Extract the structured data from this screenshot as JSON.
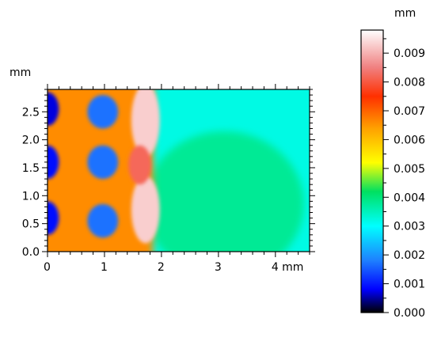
{
  "chart_data": {
    "type": "heatmap",
    "xaxis": {
      "unit_label": "mm",
      "ticks": [
        {
          "value": 0,
          "label": "0"
        },
        {
          "value": 1,
          "label": "1"
        },
        {
          "value": 2,
          "label": "2"
        },
        {
          "value": 3,
          "label": "3"
        },
        {
          "value": 4,
          "label": "4 mm"
        }
      ],
      "range": [
        0,
        4.6
      ]
    },
    "yaxis": {
      "unit_label": "mm",
      "ticks": [
        {
          "value": 0.0,
          "label": "0.0"
        },
        {
          "value": 0.5,
          "label": "0.5"
        },
        {
          "value": 1.0,
          "label": "1.0"
        },
        {
          "value": 1.5,
          "label": "1.5"
        },
        {
          "value": 2.0,
          "label": "2.0"
        },
        {
          "value": 2.5,
          "label": "2.5"
        }
      ],
      "range": [
        0,
        2.9
      ]
    },
    "colorbar": {
      "unit_label": "mm",
      "range": [
        0.0,
        0.0098
      ],
      "ticks": [
        {
          "value": 0.0,
          "label": "0.000"
        },
        {
          "value": 0.001,
          "label": "0.001"
        },
        {
          "value": 0.002,
          "label": "0.002"
        },
        {
          "value": 0.003,
          "label": "0.003"
        },
        {
          "value": 0.004,
          "label": "0.004"
        },
        {
          "value": 0.005,
          "label": "0.005"
        },
        {
          "value": 0.006,
          "label": "0.006"
        },
        {
          "value": 0.007,
          "label": "0.007"
        },
        {
          "value": 0.008,
          "label": "0.008"
        },
        {
          "value": 0.009,
          "label": "0.009"
        }
      ],
      "colormap": [
        {
          "value": 0.0,
          "color": "#000000"
        },
        {
          "value": 0.0008,
          "color": "#0000ff"
        },
        {
          "value": 0.0018,
          "color": "#1e7fff"
        },
        {
          "value": 0.003,
          "color": "#00ffff"
        },
        {
          "value": 0.0042,
          "color": "#00e060"
        },
        {
          "value": 0.0052,
          "color": "#ffff00"
        },
        {
          "value": 0.0064,
          "color": "#ffa000"
        },
        {
          "value": 0.0075,
          "color": "#ff3000"
        },
        {
          "value": 0.0085,
          "color": "#f08080"
        },
        {
          "value": 0.0098,
          "color": "#ffffff"
        }
      ]
    },
    "features": [
      {
        "kind": "background",
        "value": 0.0032
      },
      {
        "kind": "basin",
        "x": 3.1,
        "y": 0.85,
        "rx": 1.4,
        "ry": 1.3,
        "value": 0.0038
      },
      {
        "kind": "ring_band",
        "x_start": 0.0,
        "x_end": 1.85,
        "value": 0.0066
      },
      {
        "kind": "crest",
        "x": 1.72,
        "y": 2.35,
        "rx": 0.25,
        "ry": 0.65,
        "value": 0.0093
      },
      {
        "kind": "crest",
        "x": 1.72,
        "y": 0.75,
        "rx": 0.25,
        "ry": 0.6,
        "value": 0.0093
      },
      {
        "kind": "crest",
        "x": 1.62,
        "y": 1.55,
        "rx": 0.2,
        "ry": 0.35,
        "value": 0.0082
      },
      {
        "kind": "dimple",
        "x": 0.97,
        "y": 2.5,
        "rx": 0.27,
        "ry": 0.3,
        "value": 0.0017
      },
      {
        "kind": "dimple",
        "x": 0.97,
        "y": 1.6,
        "rx": 0.27,
        "ry": 0.3,
        "value": 0.0017
      },
      {
        "kind": "dimple",
        "x": 0.97,
        "y": 0.55,
        "rx": 0.27,
        "ry": 0.3,
        "value": 0.0017
      },
      {
        "kind": "dimple",
        "x": 0.0,
        "y": 2.55,
        "rx": 0.2,
        "ry": 0.3,
        "value": 0.0007
      },
      {
        "kind": "dimple",
        "x": 0.0,
        "y": 1.6,
        "rx": 0.2,
        "ry": 0.3,
        "value": 0.0009
      },
      {
        "kind": "dimple",
        "x": 0.0,
        "y": 0.6,
        "rx": 0.2,
        "ry": 0.3,
        "value": 0.0009
      }
    ]
  }
}
